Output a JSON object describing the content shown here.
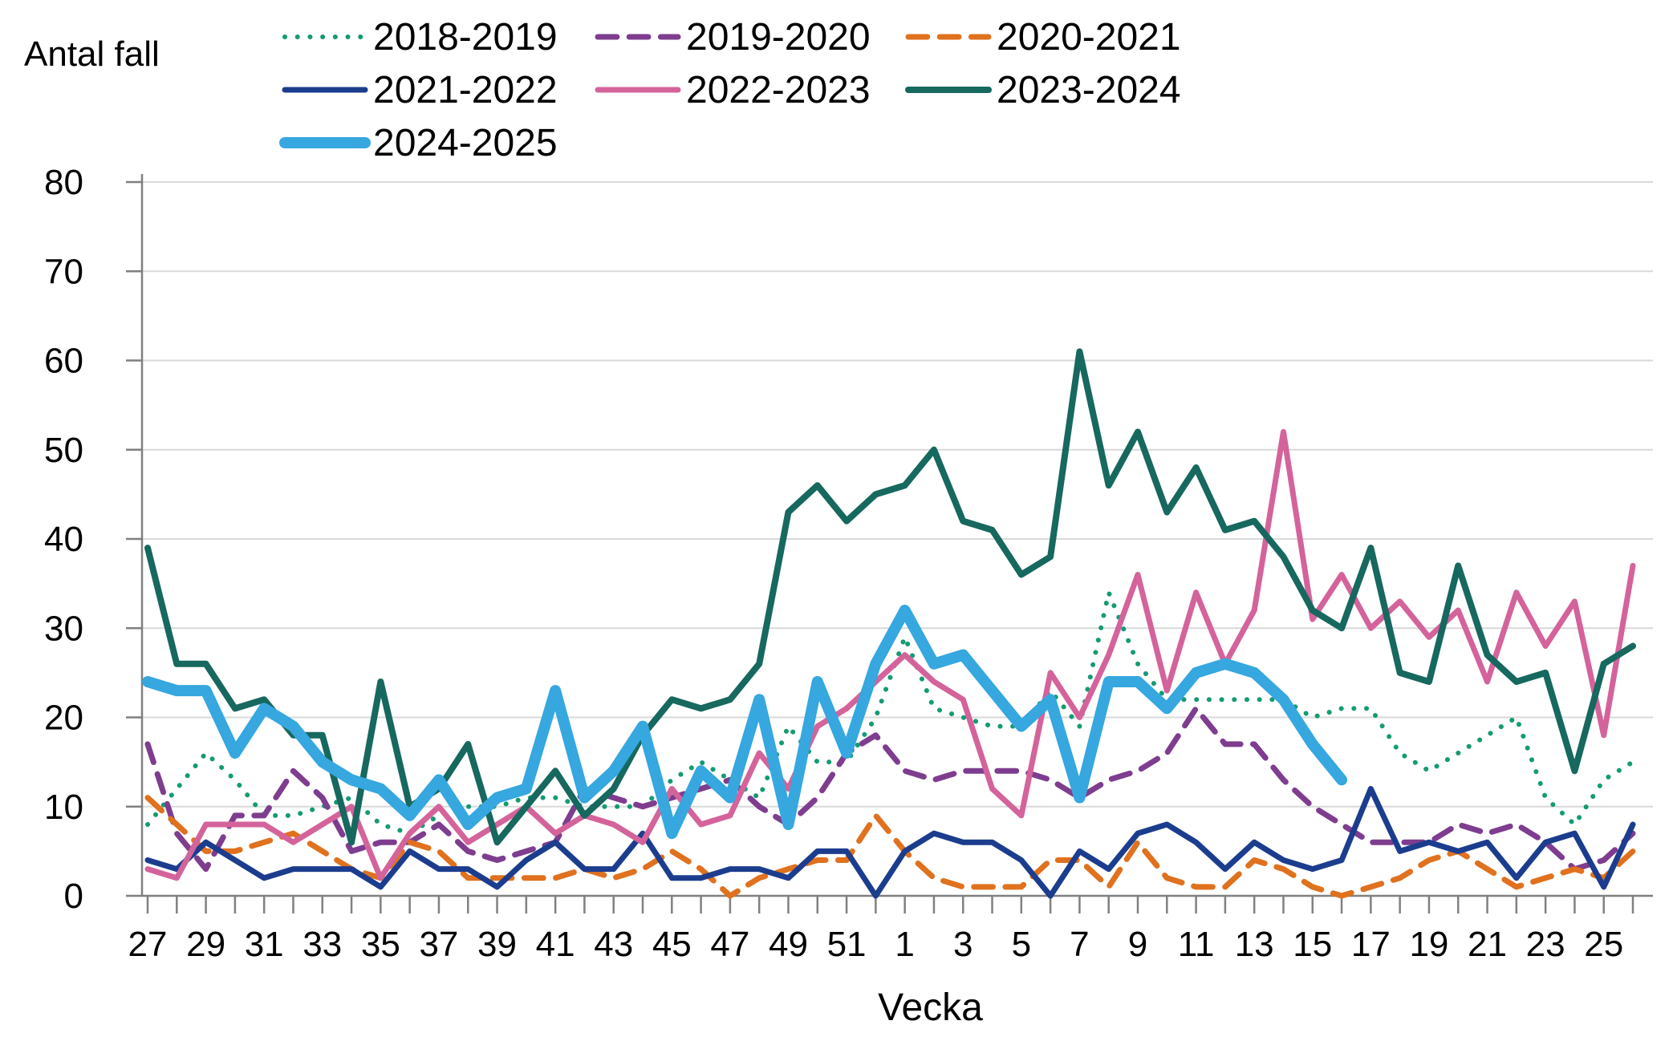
{
  "chart_data": {
    "type": "line",
    "title": "",
    "ylabel": "Antal fall",
    "xlabel": "Vecka",
    "ylim": [
      0,
      80
    ],
    "y_ticks": [
      0,
      10,
      20,
      30,
      40,
      50,
      60,
      70,
      80
    ],
    "grid": "horizontal-gridlines-on",
    "legend_position": "top",
    "categories": [
      "27",
      "28",
      "29",
      "30",
      "31",
      "32",
      "33",
      "34",
      "35",
      "36",
      "37",
      "38",
      "39",
      "40",
      "41",
      "42",
      "43",
      "44",
      "45",
      "46",
      "47",
      "48",
      "49",
      "50",
      "51",
      "52",
      "1",
      "2",
      "3",
      "4",
      "5",
      "6",
      "7",
      "8",
      "9",
      "10",
      "11",
      "12",
      "13",
      "14",
      "15",
      "16",
      "17",
      "18",
      "19",
      "20",
      "21",
      "22",
      "23",
      "24",
      "25",
      "26"
    ],
    "x_tick_labels_shown": [
      "27",
      "29",
      "31",
      "33",
      "35",
      "37",
      "39",
      "41",
      "43",
      "45",
      "47",
      "49",
      "51",
      "1",
      "3",
      "5",
      "7",
      "9",
      "11",
      "13",
      "15",
      "17",
      "19",
      "21",
      "23",
      "25"
    ],
    "axis_color": "#808080",
    "gridline_color": "#d9d9d9",
    "series": [
      {
        "name": "2018-2019",
        "color": "#149B74",
        "line_style": "dotted",
        "line_width": 6,
        "values": [
          8,
          12,
          16,
          13,
          9,
          9,
          10,
          11,
          8,
          7,
          9,
          10,
          10,
          11,
          11,
          10,
          10,
          10,
          13,
          15,
          13,
          11,
          19,
          15,
          15,
          20,
          29,
          21,
          20,
          19,
          19,
          23,
          19,
          34,
          26,
          22,
          22,
          22,
          22,
          22,
          20,
          21,
          21,
          16,
          14,
          16,
          18,
          20,
          11,
          8,
          13,
          15
        ]
      },
      {
        "name": "2019-2020",
        "color": "#7E3D8F",
        "line_style": "dashed",
        "line_width": 7,
        "values": [
          17,
          7,
          3,
          9,
          9,
          14,
          11,
          5,
          6,
          6,
          8,
          5,
          4,
          5,
          6,
          12,
          11,
          10,
          11,
          12,
          13,
          10,
          8,
          11,
          16,
          18,
          14,
          13,
          14,
          14,
          14,
          13,
          11,
          13,
          14,
          16,
          21,
          17,
          17,
          13,
          10,
          8,
          6,
          6,
          6,
          8,
          7,
          8,
          6,
          3,
          4,
          7
        ]
      },
      {
        "name": "2020-2021",
        "color": "#E0711E",
        "line_style": "dashed",
        "line_width": 7,
        "values": [
          11,
          8,
          5,
          5,
          6,
          7,
          5,
          3,
          2,
          6,
          5,
          2,
          2,
          2,
          2,
          3,
          2,
          3,
          5,
          3,
          0,
          2,
          3,
          4,
          4,
          9,
          5,
          2,
          1,
          1,
          1,
          4,
          4,
          1,
          6,
          2,
          1,
          1,
          4,
          3,
          1,
          0,
          1,
          2,
          4,
          5,
          3,
          1,
          2,
          3,
          2,
          5
        ]
      },
      {
        "name": "2021-2022",
        "color": "#1C3D8E",
        "line_style": "solid",
        "line_width": 7,
        "values": [
          4,
          3,
          6,
          4,
          2,
          3,
          3,
          3,
          1,
          5,
          3,
          3,
          1,
          4,
          6,
          3,
          3,
          7,
          2,
          2,
          3,
          3,
          2,
          5,
          5,
          0,
          5,
          7,
          6,
          6,
          4,
          0,
          5,
          3,
          7,
          8,
          6,
          3,
          6,
          4,
          3,
          4,
          12,
          5,
          6,
          5,
          6,
          2,
          6,
          7,
          1,
          8
        ]
      },
      {
        "name": "2022-2023",
        "color": "#D4639B",
        "line_style": "solid",
        "line_width": 7,
        "values": [
          3,
          2,
          8,
          8,
          8,
          6,
          8,
          10,
          2,
          7,
          10,
          6,
          8,
          10,
          7,
          9,
          8,
          6,
          12,
          8,
          9,
          16,
          12,
          19,
          21,
          24,
          27,
          24,
          22,
          12,
          9,
          25,
          20,
          27,
          36,
          23,
          34,
          26,
          32,
          52,
          31,
          36,
          30,
          33,
          29,
          32,
          24,
          34,
          28,
          33,
          18,
          37
        ]
      },
      {
        "name": "2023-2024",
        "color": "#17685F",
        "line_style": "solid",
        "line_width": 8,
        "values": [
          39,
          26,
          26,
          21,
          22,
          18,
          18,
          6,
          24,
          10,
          12,
          17,
          6,
          10,
          14,
          9,
          12,
          18,
          22,
          21,
          22,
          26,
          43,
          46,
          42,
          45,
          46,
          50,
          42,
          41,
          36,
          38,
          61,
          46,
          52,
          43,
          48,
          41,
          42,
          38,
          32,
          30,
          39,
          25,
          24,
          37,
          27,
          24,
          25,
          14,
          26,
          28
        ]
      },
      {
        "name": "2024-2025",
        "color": "#36A7DF",
        "line_style": "solid",
        "line_width": 14,
        "values": [
          24,
          23,
          23,
          16,
          21,
          19,
          15,
          13,
          12,
          9,
          13,
          8,
          11,
          12,
          23,
          11,
          14,
          19,
          7,
          14,
          11,
          22,
          8,
          24,
          16,
          26,
          32,
          26,
          27,
          23,
          19,
          22,
          11,
          24,
          24,
          21,
          25,
          26,
          25,
          22,
          17,
          13
        ]
      }
    ],
    "legend": {
      "rows": [
        [
          "2018-2019",
          "2019-2020",
          "2020-2021"
        ],
        [
          "2021-2022",
          "2022-2023",
          "2023-2024"
        ],
        [
          "2024-2025"
        ]
      ]
    }
  },
  "labels": {
    "y_axis_title": "Antal fall",
    "x_axis_title": "Vecka"
  }
}
